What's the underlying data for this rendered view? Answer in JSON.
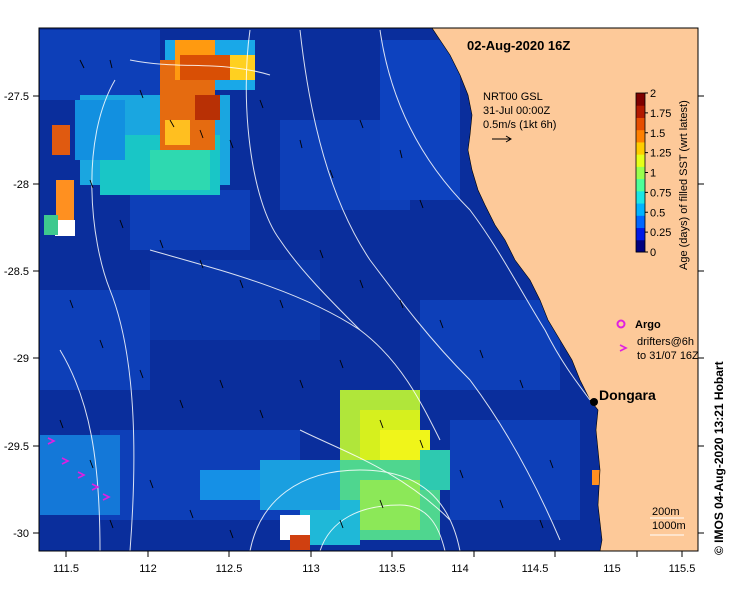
{
  "map": {
    "title": "02-Aug-2020 16Z",
    "current_source": "NRT00 GSL",
    "current_date": "31-Jul 00:00Z",
    "current_scale": "0.5m/s (1kt 6h)",
    "argo_label": "Argo",
    "drifters_line1": "drifters@6h",
    "drifters_line2": "to 31/07 16Z",
    "place_label": "Dongara",
    "depth_label_1": "200m",
    "depth_label_2": "1000m",
    "credit": "© IMOS 04-Aug-2020 13:21 Hobart",
    "lon_ticks": [
      "111.5",
      "112",
      "112.5",
      "113",
      "113.5",
      "114",
      "114.5",
      "115",
      "115.5"
    ],
    "lat_ticks": [
      "-27.5",
      "-28",
      "-28.5",
      "-29",
      "-29.5",
      "-30"
    ],
    "colorbar": {
      "label": "Age (days) of filled SST (wrt latest)",
      "ticks": [
        "2",
        "1.75",
        "1.5",
        "1.25",
        "1",
        "0.75",
        "0.5",
        "0.25",
        "0"
      ],
      "colors": [
        "#00007f",
        "#0019e6",
        "#0066ff",
        "#00b3ff",
        "#19e6e6",
        "#4dff99",
        "#99ff4d",
        "#e6ff19",
        "#ffcc00",
        "#ff8000",
        "#e64d00",
        "#b31900",
        "#7f0000"
      ]
    },
    "colors": {
      "land": "#fdc999",
      "ocean_base": "#0a2e9c",
      "contour": "#ffffff",
      "argo_marker": "#e020e0",
      "drifter_marker": "#e020e0"
    }
  }
}
